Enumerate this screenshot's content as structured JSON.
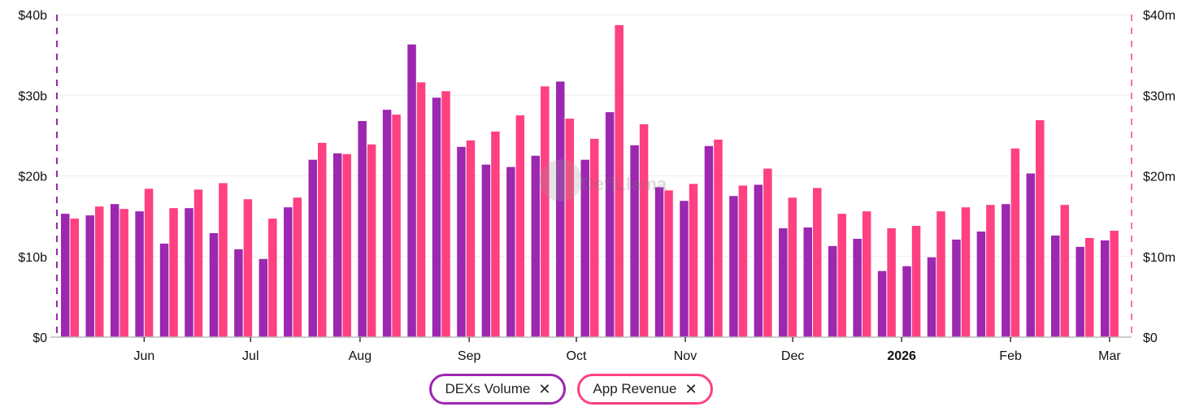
{
  "chart_data": {
    "type": "bar",
    "title": "",
    "x_unit": "week",
    "x_ticks": [
      {
        "label": "Jun",
        "at": 3,
        "bold": false
      },
      {
        "label": "Jul",
        "at": 7.3,
        "bold": false
      },
      {
        "label": "Aug",
        "at": 11.72,
        "bold": false
      },
      {
        "label": "Sep",
        "at": 16.13,
        "bold": false
      },
      {
        "label": "Oct",
        "at": 20.46,
        "bold": false
      },
      {
        "label": "Nov",
        "at": 24.86,
        "bold": false
      },
      {
        "label": "Dec",
        "at": 29.2,
        "bold": false
      },
      {
        "label": "2026",
        "at": 33.6,
        "bold": true
      },
      {
        "label": "Feb",
        "at": 38,
        "bold": false
      },
      {
        "label": "Mar",
        "at": 42,
        "bold": false
      }
    ],
    "y_left": {
      "ticks": [
        "$0",
        "$10b",
        "$20b",
        "$30b",
        "$40b"
      ],
      "range": [
        0,
        40
      ],
      "unit": "billions USD"
    },
    "y_right": {
      "ticks": [
        "$0",
        "$10m",
        "$20m",
        "$30m",
        "$40m"
      ],
      "range": [
        0,
        40
      ],
      "unit": "millions USD"
    },
    "grid": true,
    "legend_placement": "bottom-center",
    "series": [
      {
        "name": "DEXs Volume",
        "axis": "left",
        "color": "#9c27b0",
        "values": [
          15.3,
          15.1,
          16.5,
          15.6,
          11.6,
          16.0,
          12.9,
          10.9,
          9.7,
          16.1,
          22.0,
          22.8,
          26.8,
          28.2,
          36.3,
          29.7,
          23.6,
          21.4,
          21.1,
          22.5,
          31.7,
          22.0,
          27.9,
          23.8,
          18.6,
          16.9,
          23.7,
          17.5,
          18.9,
          13.5,
          13.6,
          11.3,
          12.2,
          8.2,
          8.8,
          9.9,
          12.1,
          13.1,
          16.5,
          20.3,
          12.6,
          11.2,
          12.0
        ]
      },
      {
        "name": "App Revenue",
        "axis": "right",
        "color": "#ff4081",
        "values": [
          14.7,
          16.2,
          15.9,
          18.4,
          16.0,
          18.3,
          19.1,
          17.1,
          14.7,
          17.3,
          24.1,
          22.7,
          23.9,
          27.6,
          31.6,
          30.5,
          24.4,
          25.5,
          27.5,
          31.1,
          27.1,
          24.6,
          38.7,
          26.4,
          18.2,
          19.0,
          24.5,
          18.8,
          20.9,
          17.3,
          18.5,
          15.3,
          15.6,
          13.5,
          13.8,
          15.6,
          16.1,
          16.4,
          23.4,
          26.9,
          16.4,
          12.3,
          13.2
        ]
      }
    ]
  },
  "legend": {
    "close_symbol": "✕"
  }
}
